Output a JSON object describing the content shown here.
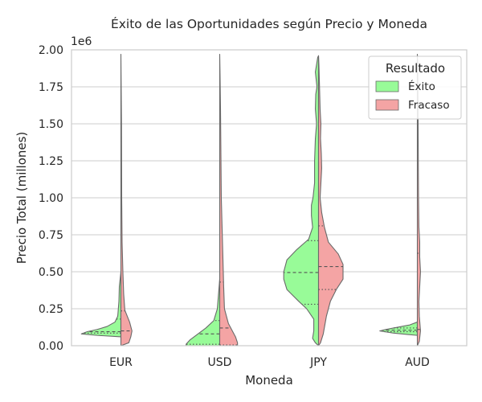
{
  "chart_data": {
    "type": "violin",
    "title": "Éxito de las Oportunidades según Precio y Moneda",
    "xlabel": "Moneda",
    "ylabel": "Precio Total (millones)",
    "y_offset_label": "1e6",
    "ylim": [
      0,
      2000000
    ],
    "yticks": [
      0,
      250000,
      500000,
      750000,
      1000000,
      1250000,
      1500000,
      1750000,
      2000000
    ],
    "ytick_labels": [
      "0.00",
      "0.25",
      "0.50",
      "0.75",
      "1.00",
      "1.25",
      "1.50",
      "1.75",
      "2.00"
    ],
    "categories": [
      "EUR",
      "USD",
      "JPY",
      "AUD"
    ],
    "grid": true,
    "legend": {
      "title": "Resultado",
      "placement": "top-right"
    },
    "series": [
      {
        "name": "Éxito",
        "color": "#98fb98",
        "violins": [
          {
            "category": "EUR",
            "quartiles": [
              85000,
              95000,
              180000
            ],
            "profile": [
              [
                60000,
                0.0
              ],
              [
                70000,
                0.6
              ],
              [
                80000,
                1.0
              ],
              [
                95000,
                0.85
              ],
              [
                110000,
                0.6
              ],
              [
                130000,
                0.35
              ],
              [
                160000,
                0.15
              ],
              [
                200000,
                0.08
              ],
              [
                300000,
                0.05
              ],
              [
                400000,
                0.04
              ],
              [
                500000,
                0.0
              ]
            ]
          },
          {
            "category": "USD",
            "quartiles": [
              10000,
              80000,
              170000
            ],
            "profile": [
              [
                0,
                0.85
              ],
              [
                10000,
                0.85
              ],
              [
                40000,
                0.75
              ],
              [
                80000,
                0.55
              ],
              [
                120000,
                0.35
              ],
              [
                170000,
                0.15
              ],
              [
                250000,
                0.06
              ],
              [
                350000,
                0.03
              ],
              [
                450000,
                0.0
              ]
            ]
          },
          {
            "category": "JPY",
            "quartiles": [
              280000,
              495000,
              710000
            ],
            "profile": [
              [
                0,
                0.0
              ],
              [
                20000,
                0.08
              ],
              [
                50000,
                0.15
              ],
              [
                100000,
                0.12
              ],
              [
                180000,
                0.12
              ],
              [
                250000,
                0.3
              ],
              [
                300000,
                0.5
              ],
              [
                380000,
                0.8
              ],
              [
                450000,
                0.88
              ],
              [
                500000,
                0.88
              ],
              [
                580000,
                0.8
              ],
              [
                650000,
                0.55
              ],
              [
                720000,
                0.25
              ],
              [
                800000,
                0.15
              ],
              [
                880000,
                0.18
              ],
              [
                950000,
                0.18
              ],
              [
                1000000,
                0.14
              ],
              [
                1100000,
                0.1
              ],
              [
                1250000,
                0.1
              ],
              [
                1400000,
                0.08
              ],
              [
                1500000,
                0.05
              ],
              [
                1600000,
                0.08
              ],
              [
                1700000,
                0.07
              ],
              [
                1750000,
                0.04
              ],
              [
                1850000,
                0.08
              ],
              [
                1950000,
                0.02
              ],
              [
                1960000,
                0.0
              ]
            ]
          },
          {
            "category": "AUD",
            "quartiles": [
              95000,
              105000,
              120000
            ],
            "profile": [
              [
                70000,
                0.0
              ],
              [
                85000,
                0.6
              ],
              [
                100000,
                0.95
              ],
              [
                110000,
                0.8
              ],
              [
                120000,
                0.6
              ],
              [
                140000,
                0.2
              ],
              [
                160000,
                0.0
              ]
            ]
          }
        ]
      },
      {
        "name": "Fracaso",
        "color": "#f4a4a4",
        "violins": [
          {
            "category": "EUR",
            "quartiles": [
              0,
              100000,
              235000
            ],
            "profile": [
              [
                0,
                0.0
              ],
              [
                20000,
                0.2
              ],
              [
                60000,
                0.25
              ],
              [
                100000,
                0.28
              ],
              [
                160000,
                0.22
              ],
              [
                240000,
                0.1
              ],
              [
                350000,
                0.07
              ],
              [
                500000,
                0.05
              ],
              [
                700000,
                0.03
              ],
              [
                1000000,
                0.02
              ],
              [
                1500000,
                0.015
              ],
              [
                1970000,
                0.0
              ]
            ]
          },
          {
            "category": "USD",
            "quartiles": [
              5000,
              120000,
              430000
            ],
            "profile": [
              [
                0,
                0.45
              ],
              [
                20000,
                0.45
              ],
              [
                60000,
                0.4
              ],
              [
                100000,
                0.32
              ],
              [
                150000,
                0.22
              ],
              [
                250000,
                0.12
              ],
              [
                400000,
                0.1
              ],
              [
                600000,
                0.08
              ],
              [
                800000,
                0.06
              ],
              [
                1000000,
                0.04
              ],
              [
                1300000,
                0.03
              ],
              [
                1600000,
                0.02
              ],
              [
                1800000,
                0.01
              ],
              [
                1970000,
                0.0
              ]
            ]
          },
          {
            "category": "JPY",
            "quartiles": [
              380000,
              535000,
              810000
            ],
            "profile": [
              [
                0,
                0.0
              ],
              [
                20000,
                0.05
              ],
              [
                80000,
                0.12
              ],
              [
                200000,
                0.2
              ],
              [
                300000,
                0.3
              ],
              [
                380000,
                0.45
              ],
              [
                450000,
                0.62
              ],
              [
                550000,
                0.62
              ],
              [
                620000,
                0.5
              ],
              [
                700000,
                0.25
              ],
              [
                800000,
                0.15
              ],
              [
                900000,
                0.08
              ],
              [
                1000000,
                0.04
              ],
              [
                1100000,
                0.06
              ],
              [
                1200000,
                0.08
              ],
              [
                1300000,
                0.07
              ],
              [
                1400000,
                0.05
              ],
              [
                1500000,
                0.06
              ],
              [
                1600000,
                0.04
              ],
              [
                1700000,
                0.03
              ],
              [
                1800000,
                0.02
              ],
              [
                1900000,
                0.01
              ],
              [
                1960000,
                0.0
              ]
            ]
          },
          {
            "category": "AUD",
            "quartiles": [
              5000,
              110000,
              625000
            ],
            "profile": [
              [
                0,
                0.0
              ],
              [
                30000,
                0.05
              ],
              [
                100000,
                0.08
              ],
              [
                200000,
                0.05
              ],
              [
                300000,
                0.04
              ],
              [
                400000,
                0.06
              ],
              [
                500000,
                0.08
              ],
              [
                600000,
                0.06
              ],
              [
                700000,
                0.06
              ],
              [
                800000,
                0.04
              ],
              [
                1000000,
                0.03
              ],
              [
                1200000,
                0.025
              ],
              [
                1500000,
                0.02
              ],
              [
                1700000,
                0.015
              ],
              [
                1900000,
                0.01
              ],
              [
                1970000,
                0.0
              ]
            ]
          }
        ]
      }
    ]
  }
}
